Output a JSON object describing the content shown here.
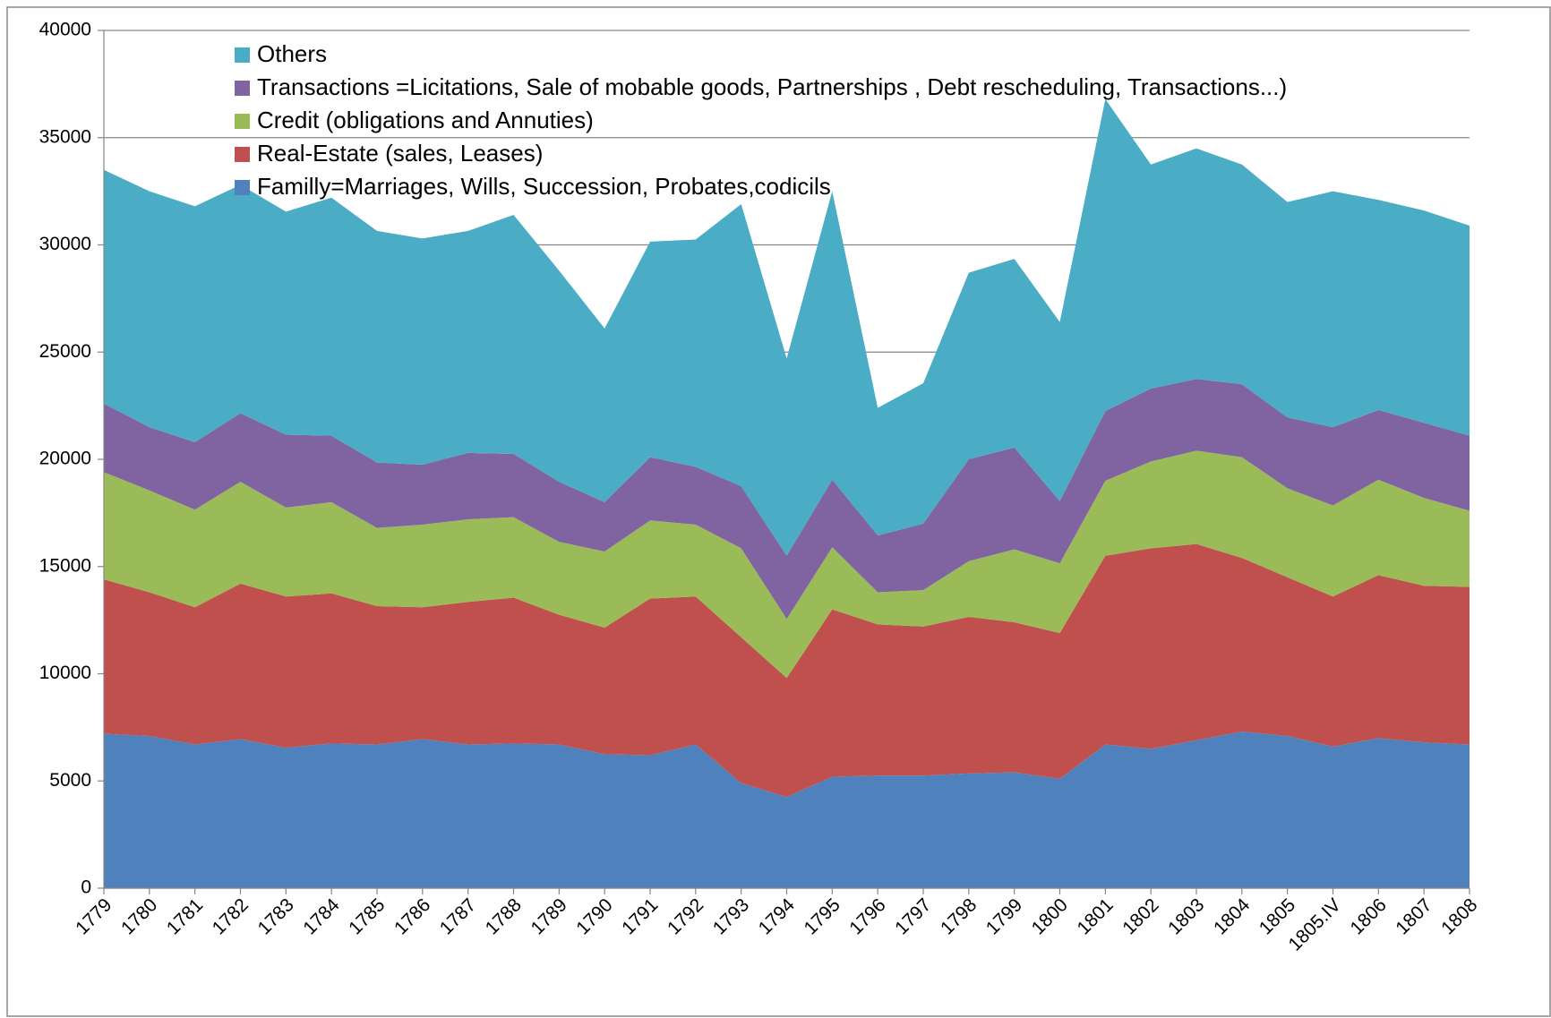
{
  "chart_data": {
    "type": "stacked_area",
    "categories": [
      "1779",
      "1780",
      "1781",
      "1782",
      "1783",
      "1784",
      "1785",
      "1786",
      "1787",
      "1788",
      "1789",
      "1790",
      "1791",
      "1792",
      "1793",
      "1794",
      "1795",
      "1796",
      "1797",
      "1798",
      "1799",
      "1800",
      "1801",
      "1802",
      "1803",
      "1804",
      "1805",
      "1805.IV",
      "1806",
      "1807",
      "1808"
    ],
    "series": [
      {
        "name": "Familly=Marriages, Wills, Succession, Probates,codicils",
        "color": "#4f81bd",
        "values": [
          7200,
          7100,
          6700,
          6950,
          6550,
          6750,
          6700,
          6950,
          6700,
          6750,
          6700,
          6250,
          6200,
          6700,
          4900,
          4250,
          5200,
          5250,
          5250,
          5350,
          5400,
          5100,
          6700,
          6500,
          6900,
          7300,
          7100,
          6600,
          7000,
          6800,
          6700
        ]
      },
      {
        "name": "Real-Estate (sales, Leases)",
        "color": "#c0504d",
        "values": [
          7200,
          6700,
          6400,
          7250,
          7050,
          7000,
          6450,
          6150,
          6650,
          6800,
          6050,
          5900,
          7300,
          6900,
          6800,
          5550,
          7800,
          7050,
          6950,
          7300,
          7000,
          6800,
          8800,
          9350,
          9150,
          8100,
          7400,
          7000,
          7600,
          7300,
          7350
        ]
      },
      {
        "name": "Credit (obligations and Annuties)",
        "color": "#9bbb59",
        "values": [
          5000,
          4750,
          4550,
          4750,
          4150,
          4250,
          3650,
          3850,
          3850,
          3750,
          3400,
          3550,
          3650,
          3350,
          4150,
          2750,
          2900,
          1500,
          1700,
          2600,
          3400,
          3250,
          3500,
          4050,
          4350,
          4700,
          4150,
          4250,
          4450,
          4100,
          3550
        ]
      },
      {
        "name": "Transactions =Licitations, Sale of mobable goods, Partnerships , Debt rescheduling, Transactions...)",
        "color": "#8064a2",
        "values": [
          3200,
          2950,
          3150,
          3200,
          3400,
          3100,
          3050,
          2800,
          3100,
          2950,
          2800,
          2300,
          2950,
          2700,
          2900,
          2950,
          3150,
          2650,
          3100,
          4750,
          4750,
          2900,
          3250,
          3400,
          3350,
          3400,
          3300,
          3650,
          3250,
          3500,
          3500
        ]
      },
      {
        "name": "Others",
        "color": "#4bacc6",
        "values": [
          10900,
          11000,
          11000,
          10650,
          10400,
          11100,
          10800,
          10550,
          10350,
          11150,
          9850,
          8100,
          10050,
          10600,
          13150,
          9200,
          13450,
          5950,
          6550,
          8700,
          8800,
          8350,
          14550,
          10450,
          10750,
          10250,
          10050,
          11000,
          9800,
          9900,
          9800
        ]
      }
    ],
    "ylim": [
      0,
      40000
    ],
    "yticks": [
      0,
      5000,
      10000,
      15000,
      20000,
      25000,
      30000,
      35000,
      40000
    ],
    "grid": true
  }
}
